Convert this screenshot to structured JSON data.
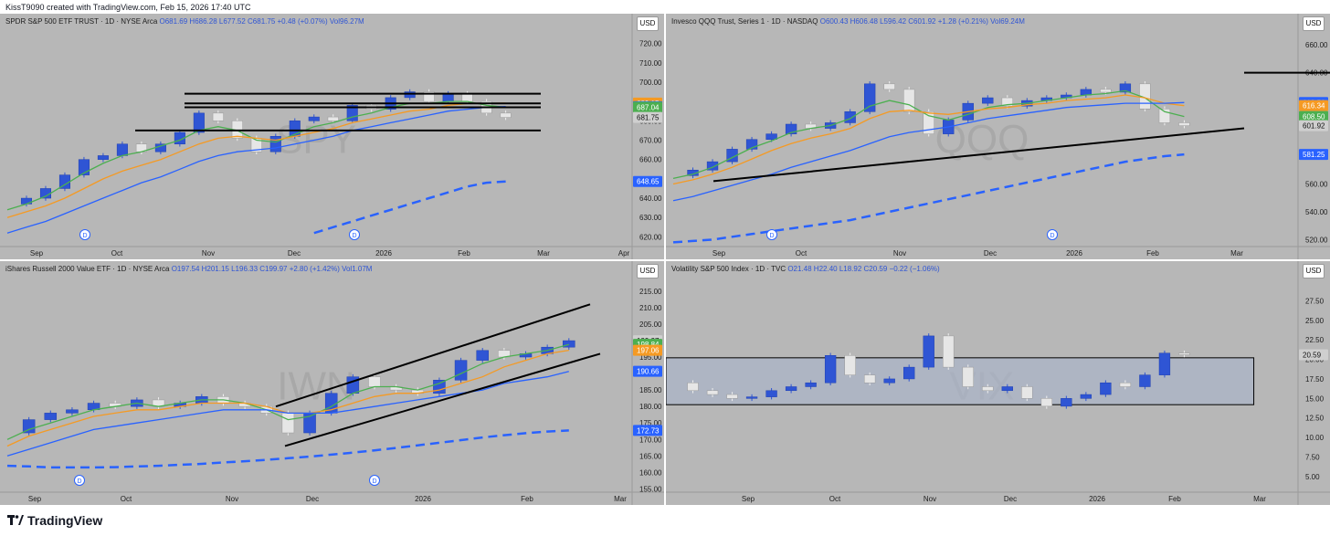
{
  "header": {
    "credit": "KissT9090 created with TradingView.com, Feb 15, 2026 17:40 UTC"
  },
  "footer": {
    "brand": "TradingView"
  },
  "panels": [
    {
      "key": "spy",
      "legend": {
        "name": "SPDR S&P 500 ETF TRUST · 1D · NYSE Arca",
        "o": "O681.69",
        "h": "H686.28",
        "l": "L677.52",
        "c": "C681.75",
        "chg": "+0.48 (+0.07%)",
        "vol": "Vol96.27M"
      },
      "currency": "USD",
      "watermark": "SPY",
      "x_labels": [
        "Sep",
        "Oct",
        "Nov",
        "Dec",
        "2026",
        "Feb",
        "Mar",
        "Apr"
      ],
      "y_ticks": [
        "720.00",
        "710.00",
        "700.00",
        "690.00",
        "680.00",
        "670.00",
        "660.00",
        "650.00",
        "640.00",
        "630.00",
        "620.00"
      ],
      "price_tags": [
        {
          "text": "689.15",
          "color": "#f59a23"
        },
        {
          "text": "687.36",
          "color": "#2962ff"
        },
        {
          "text": "687.04",
          "color": "#4caf50"
        },
        {
          "text": "681.75",
          "color": "#cfcfcf"
        },
        {
          "text": "648.65",
          "color": "#2962ff"
        }
      ]
    },
    {
      "key": "qqq",
      "legend": {
        "name": "Invesco QQQ Trust, Series 1 · 1D · NASDAQ",
        "o": "O600.43",
        "h": "H606.48",
        "l": "L596.42",
        "c": "C601.92",
        "chg": "+1.28 (+0.21%)",
        "vol": "Vol69.24M"
      },
      "currency": "USD",
      "watermark": "QQQ",
      "x_labels": [
        "Sep",
        "Oct",
        "Nov",
        "Dec",
        "2026",
        "Feb",
        "Mar"
      ],
      "y_ticks": [
        "660.00",
        "640.00",
        "620.00",
        "600.00",
        "580.00",
        "560.00",
        "540.00",
        "520.00"
      ],
      "price_tags": [
        {
          "text": "618.56",
          "color": "#2962ff"
        },
        {
          "text": "616.34",
          "color": "#f59a23"
        },
        {
          "text": "608.50",
          "color": "#4caf50"
        },
        {
          "text": "601.92",
          "color": "#cfcfcf"
        },
        {
          "text": "581.25",
          "color": "#2962ff"
        }
      ]
    },
    {
      "key": "iwn",
      "legend": {
        "name": "iShares Russell 2000 Value ETF · 1D · NYSE Arca",
        "o": "O197.54",
        "h": "H201.15",
        "l": "L196.33",
        "c": "C199.97",
        "chg": "+2.80 (+1.42%)",
        "vol": "Vol1.07M"
      },
      "currency": "USD",
      "watermark": "IWN",
      "x_labels": [
        "Sep",
        "Oct",
        "Nov",
        "Dec",
        "2026",
        "Feb",
        "Mar"
      ],
      "y_ticks": [
        "215.00",
        "210.00",
        "205.00",
        "200.00",
        "195.00",
        "190.00",
        "185.00",
        "180.00",
        "175.00",
        "170.00",
        "165.00",
        "160.00",
        "155.00"
      ],
      "price_tags": [
        {
          "text": "199.97",
          "color": "#cfcfcf"
        },
        {
          "text": "198.84",
          "color": "#4caf50"
        },
        {
          "text": "197.06",
          "color": "#f59a23"
        },
        {
          "text": "190.66",
          "color": "#2962ff"
        },
        {
          "text": "172.73",
          "color": "#2962ff"
        }
      ]
    },
    {
      "key": "vix",
      "legend": {
        "name": "Volatility S&P 500 Index · 1D · TVC",
        "o": "O21.48",
        "h": "H22.40",
        "l": "L18.92",
        "c": "C20.59",
        "chg": "−0.22 (−1.06%)",
        "vol": ""
      },
      "currency": "USD",
      "watermark": "VIX",
      "x_labels": [
        "Sep",
        "Oct",
        "Nov",
        "Dec",
        "2026",
        "Feb",
        "Mar"
      ],
      "y_ticks": [
        "27.50",
        "25.00",
        "22.50",
        "20.00",
        "17.50",
        "15.00",
        "12.50",
        "10.00",
        "7.50",
        "5.00"
      ],
      "price_tags": [
        {
          "text": "20.59",
          "color": "#cfcfcf"
        }
      ]
    }
  ],
  "chart_data": [
    {
      "type": "candlestick",
      "title": "SPDR S&P 500 ETF TRUST · 1D · NYSE Arca",
      "ylim": [
        615,
        725
      ],
      "x": [
        "Aug 18",
        "Aug 25",
        "Sep 1",
        "Sep 8",
        "Sep 15",
        "Sep 22",
        "Sep 29",
        "Oct 6",
        "Oct 13",
        "Oct 20",
        "Oct 27",
        "Nov 3",
        "Nov 10",
        "Nov 17",
        "Nov 24",
        "Dec 1",
        "Dec 8",
        "Dec 15",
        "Dec 22",
        "Dec 29",
        "Jan 5",
        "Jan 12",
        "Jan 19",
        "Jan 26",
        "Feb 2",
        "Feb 9",
        "Feb 13"
      ],
      "series": [
        {
          "name": "Close",
          "values": [
            637,
            640,
            645,
            652,
            660,
            662,
            668,
            664,
            668,
            674,
            684,
            680,
            671,
            664,
            672,
            680,
            682,
            680,
            688,
            686,
            692,
            695,
            690,
            694,
            690,
            684,
            681.75
          ]
        },
        {
          "name": "SMA short",
          "values": [
            634,
            637,
            641,
            647,
            653,
            658,
            662,
            664,
            667,
            670,
            675,
            677,
            675,
            670,
            669,
            673,
            677,
            679,
            682,
            684,
            687,
            689,
            689,
            690,
            690,
            688,
            687.04
          ]
        },
        {
          "name": "SMA mid",
          "values": [
            630,
            633,
            636,
            640,
            645,
            650,
            654,
            657,
            660,
            664,
            668,
            671,
            672,
            671,
            670,
            672,
            674,
            676,
            679,
            681,
            683,
            685,
            686,
            688,
            689,
            689,
            689.15
          ]
        },
        {
          "name": "SMA long",
          "values": [
            622,
            625,
            628,
            632,
            636,
            640,
            644,
            648,
            651,
            655,
            659,
            662,
            664,
            665,
            666,
            668,
            670,
            672,
            675,
            677,
            679,
            681,
            683,
            685,
            686,
            687,
            687.36
          ]
        },
        {
          "name": "SMA 200",
          "values": [
            null,
            null,
            null,
            null,
            null,
            null,
            null,
            null,
            null,
            null,
            null,
            null,
            null,
            null,
            null,
            null,
            622,
            625,
            628,
            631,
            634,
            637,
            640,
            643,
            646,
            648,
            648.65
          ]
        }
      ],
      "levels": [
        694,
        687,
        675,
        689
      ]
    },
    {
      "type": "candlestick",
      "title": "Invesco QQQ Trust, Series 1 · 1D · NASDAQ",
      "ylim": [
        515,
        668
      ],
      "x": [
        "Aug 18",
        "Aug 25",
        "Sep 1",
        "Sep 8",
        "Sep 15",
        "Sep 22",
        "Sep 29",
        "Oct 6",
        "Oct 13",
        "Oct 20",
        "Oct 27",
        "Nov 3",
        "Nov 10",
        "Nov 17",
        "Nov 24",
        "Dec 1",
        "Dec 8",
        "Dec 15",
        "Dec 22",
        "Dec 29",
        "Jan 5",
        "Jan 12",
        "Jan 19",
        "Jan 26",
        "Feb 2",
        "Feb 9",
        "Feb 13"
      ],
      "series": [
        {
          "name": "Close",
          "values": [
            566,
            570,
            576,
            585,
            592,
            596,
            603,
            600,
            604,
            612,
            632,
            628,
            612,
            596,
            606,
            618,
            622,
            616,
            620,
            622,
            624,
            628,
            626,
            632,
            614,
            604,
            601.92
          ]
        },
        {
          "name": "SMA short",
          "values": [
            564,
            567,
            572,
            579,
            586,
            591,
            597,
            600,
            602,
            607,
            616,
            620,
            617,
            609,
            606,
            610,
            615,
            617,
            618,
            620,
            622,
            624,
            625,
            627,
            622,
            612,
            608.5
          ]
        },
        {
          "name": "SMA mid",
          "values": [
            560,
            563,
            567,
            572,
            578,
            584,
            589,
            593,
            596,
            600,
            607,
            612,
            613,
            611,
            610,
            612,
            614,
            615,
            617,
            618,
            620,
            621,
            622,
            624,
            622,
            618,
            616.34
          ]
        },
        {
          "name": "SMA long",
          "values": [
            548,
            551,
            555,
            559,
            563,
            567,
            572,
            576,
            580,
            584,
            589,
            594,
            597,
            599,
            601,
            604,
            607,
            609,
            611,
            613,
            615,
            616,
            617,
            618,
            618,
            618,
            618.56
          ]
        },
        {
          "name": "SMA 200",
          "values": [
            518,
            519,
            520,
            522,
            524,
            526,
            528,
            530,
            532,
            534,
            537,
            540,
            543,
            546,
            549,
            552,
            555,
            558,
            561,
            564,
            567,
            570,
            573,
            576,
            578,
            580,
            581.25
          ]
        }
      ],
      "levels": [
        640
      ]
    },
    {
      "type": "candlestick",
      "title": "iShares Russell 2000 Value ETF · 1D · NYSE Arca",
      "ylim": [
        154,
        218
      ],
      "x": [
        "Aug 18",
        "Aug 25",
        "Sep 1",
        "Sep 8",
        "Sep 15",
        "Sep 22",
        "Sep 29",
        "Oct 6",
        "Oct 13",
        "Oct 20",
        "Oct 27",
        "Nov 3",
        "Nov 10",
        "Nov 17",
        "Nov 24",
        "Dec 1",
        "Dec 8",
        "Dec 15",
        "Dec 22",
        "Dec 29",
        "Jan 5",
        "Jan 12",
        "Jan 19",
        "Jan 26",
        "Feb 2",
        "Feb 9",
        "Feb 13"
      ],
      "series": [
        {
          "name": "Close",
          "values": [
            172,
            176,
            178,
            179,
            181,
            180,
            182,
            180,
            181,
            183,
            181,
            180,
            178,
            172,
            178,
            184,
            189,
            186,
            185,
            184,
            188,
            194,
            197,
            195,
            196,
            198,
            199.97
          ]
        },
        {
          "name": "SMA short",
          "values": [
            170,
            173,
            175,
            177,
            179,
            180,
            181,
            180,
            181,
            182,
            182,
            181,
            179,
            176,
            177,
            180,
            184,
            186,
            186,
            185,
            187,
            190,
            193,
            195,
            196,
            197,
            198.84
          ]
        },
        {
          "name": "SMA mid",
          "values": [
            168,
            171,
            173,
            175,
            177,
            178,
            179,
            179,
            180,
            181,
            181,
            181,
            180,
            178,
            178,
            179,
            181,
            183,
            184,
            184,
            185,
            187,
            189,
            192,
            194,
            196,
            197.06
          ]
        },
        {
          "name": "SMA long",
          "values": [
            165,
            167,
            169,
            171,
            173,
            174,
            175,
            176,
            177,
            178,
            179,
            179,
            179,
            178,
            178,
            178,
            179,
            180,
            181,
            182,
            183,
            184,
            185,
            187,
            188,
            189,
            190.66
          ]
        },
        {
          "name": "SMA 200",
          "values": [
            162,
            161.8,
            161.5,
            161.5,
            161.5,
            161.6,
            161.8,
            162,
            162.3,
            162.6,
            163,
            163.4,
            163.8,
            164.3,
            164.8,
            165.4,
            166,
            166.7,
            167.4,
            168.2,
            169,
            169.8,
            170.6,
            171.3,
            171.9,
            172.4,
            172.73
          ]
        }
      ]
    },
    {
      "type": "candlestick",
      "title": "Volatility S&P 500 Index · 1D · TVC",
      "ylim": [
        3,
        30
      ],
      "x": [
        "Aug 18",
        "Aug 25",
        "Sep 1",
        "Sep 8",
        "Sep 15",
        "Sep 22",
        "Sep 29",
        "Oct 6",
        "Oct 13",
        "Oct 20",
        "Oct 27",
        "Nov 3",
        "Nov 10",
        "Nov 17",
        "Nov 24",
        "Dec 1",
        "Dec 8",
        "Dec 15",
        "Dec 22",
        "Dec 29",
        "Jan 5",
        "Jan 12",
        "Jan 19",
        "Jan 26",
        "Feb 2",
        "Feb 9",
        "Feb 13"
      ],
      "series": [
        {
          "name": "Close",
          "values": [
            17,
            16,
            15.5,
            15,
            15.2,
            16,
            16.5,
            17,
            20.5,
            18,
            17,
            17.5,
            19,
            23,
            19,
            16.5,
            16,
            16.5,
            15,
            14,
            15,
            15.5,
            17,
            16.5,
            18,
            20.8,
            20.59
          ]
        }
      ],
      "zone": [
        14.2,
        20.2
      ]
    }
  ]
}
